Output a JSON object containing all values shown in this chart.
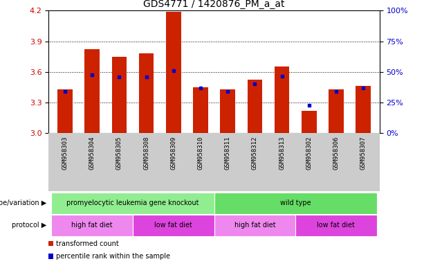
{
  "title": "GDS4771 / 1420876_PM_a_at",
  "samples": [
    "GSM958303",
    "GSM958304",
    "GSM958305",
    "GSM958308",
    "GSM958309",
    "GSM958310",
    "GSM958311",
    "GSM958312",
    "GSM958313",
    "GSM958302",
    "GSM958306",
    "GSM958307"
  ],
  "bar_heights": [
    3.43,
    3.82,
    3.75,
    3.78,
    4.19,
    3.45,
    3.43,
    3.52,
    3.65,
    3.22,
    3.43,
    3.46
  ],
  "blue_dot_values": [
    3.41,
    3.57,
    3.55,
    3.55,
    3.61,
    3.44,
    3.41,
    3.48,
    3.56,
    3.27,
    3.41,
    3.44
  ],
  "bar_bottom": 3.0,
  "ylim": [
    3.0,
    4.2
  ],
  "yticks_left": [
    3.0,
    3.3,
    3.6,
    3.9,
    4.2
  ],
  "yticks_right": [
    0,
    25,
    50,
    75,
    100
  ],
  "ylabel_left_color": "#cc0000",
  "ylabel_right_color": "#0000cc",
  "bar_color": "#cc2200",
  "dot_color": "#0000cc",
  "background_color": "#ffffff",
  "xtick_bg": "#cccccc",
  "genotype_groups": [
    {
      "label": "promyelocytic leukemia gene knockout",
      "start": 0,
      "end": 5,
      "color": "#90ee90"
    },
    {
      "label": "wild type",
      "start": 6,
      "end": 11,
      "color": "#66dd66"
    }
  ],
  "protocol_groups": [
    {
      "label": "high fat diet",
      "start": 0,
      "end": 2,
      "color": "#ee88ee"
    },
    {
      "label": "low fat diet",
      "start": 3,
      "end": 5,
      "color": "#dd44dd"
    },
    {
      "label": "high fat diet",
      "start": 6,
      "end": 8,
      "color": "#ee88ee"
    },
    {
      "label": "low fat diet",
      "start": 9,
      "end": 11,
      "color": "#dd44dd"
    }
  ],
  "legend_items": [
    {
      "color": "#cc2200",
      "label": "transformed count"
    },
    {
      "color": "#0000cc",
      "label": "percentile rank within the sample"
    }
  ],
  "genotype_label": "genotype/variation",
  "protocol_label": "protocol"
}
